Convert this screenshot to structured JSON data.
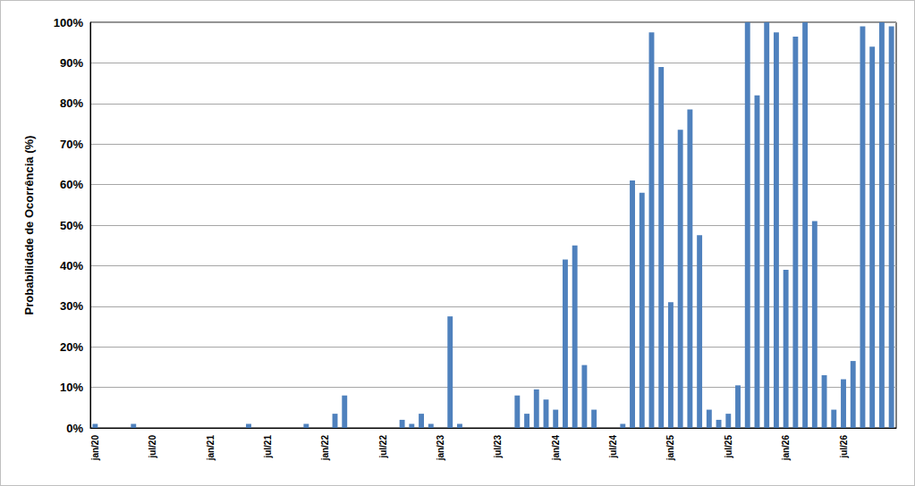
{
  "chart_data": {
    "type": "bar",
    "y_label": "Probabilidade de Ocorrência (%)",
    "categories": [
      "jan/20",
      null,
      null,
      null,
      null,
      null,
      "jul/20",
      null,
      null,
      null,
      null,
      null,
      "jan/21",
      null,
      null,
      null,
      null,
      null,
      "jul/21",
      null,
      null,
      null,
      null,
      null,
      "jan/22",
      null,
      null,
      null,
      null,
      null,
      "jul/22",
      null,
      null,
      null,
      null,
      null,
      "jan/23",
      null,
      null,
      null,
      null,
      null,
      "jul/23",
      null,
      null,
      null,
      null,
      null,
      "jan/24",
      null,
      null,
      null,
      null,
      null,
      "jul/24",
      null,
      null,
      null,
      null,
      null,
      "jan/25",
      null,
      null,
      null,
      null,
      null,
      "jul/25",
      null,
      null,
      null,
      null,
      null,
      "jan/26",
      null,
      null,
      null,
      null,
      null,
      "jul/26",
      null,
      null,
      null,
      null,
      null
    ],
    "values": [
      1,
      0,
      0,
      0,
      1,
      0,
      0,
      0,
      0,
      0,
      0,
      0,
      0,
      0,
      0,
      0,
      1,
      0,
      0,
      0,
      0,
      0,
      1,
      0,
      0,
      3.5,
      8,
      0,
      0,
      0,
      0,
      0,
      2,
      1,
      3.5,
      1,
      0,
      27.5,
      1,
      0,
      0,
      0,
      0,
      0,
      8,
      3.5,
      9.5,
      7,
      4.5,
      41.5,
      45,
      15.5,
      4.5,
      0,
      0,
      1,
      61,
      58,
      97.5,
      89,
      31,
      73.5,
      78.5,
      47.5,
      4.5,
      2,
      3.5,
      10.5,
      100,
      82,
      100,
      97.5,
      39,
      96.5,
      100,
      51,
      13,
      4.5,
      12,
      16.5,
      99,
      94,
      100,
      99
    ],
    "color": "#4f81bd",
    "ylim": [
      0,
      100
    ],
    "yticks": [
      {
        "value": 0,
        "label": "0%"
      },
      {
        "value": 10,
        "label": "10%"
      },
      {
        "value": 20,
        "label": "20%"
      },
      {
        "value": 30,
        "label": "30%"
      },
      {
        "value": 40,
        "label": "40%"
      },
      {
        "value": 50,
        "label": "50%"
      },
      {
        "value": 60,
        "label": "60%"
      },
      {
        "value": 70,
        "label": "70%"
      },
      {
        "value": 80,
        "label": "80%"
      },
      {
        "value": 90,
        "label": "90%"
      },
      {
        "value": 100,
        "label": "100%"
      }
    ],
    "grid": true
  }
}
